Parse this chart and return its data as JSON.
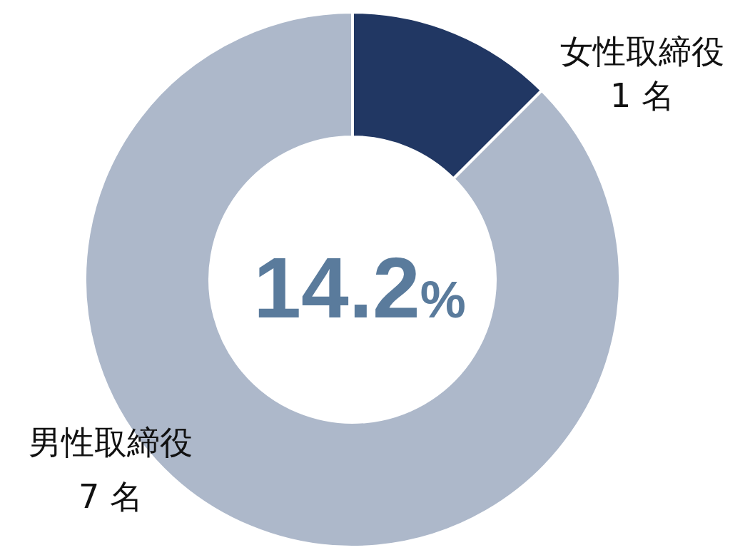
{
  "chart_data": {
    "type": "donut",
    "categories": [
      "女性取締役",
      "男性取締役"
    ],
    "values": [
      1,
      7
    ],
    "colors": [
      "#213763",
      "#adb8ca"
    ],
    "value_labels": [
      "1 名",
      "7 名"
    ],
    "annotations": [
      "14.2%"
    ]
  }
}
